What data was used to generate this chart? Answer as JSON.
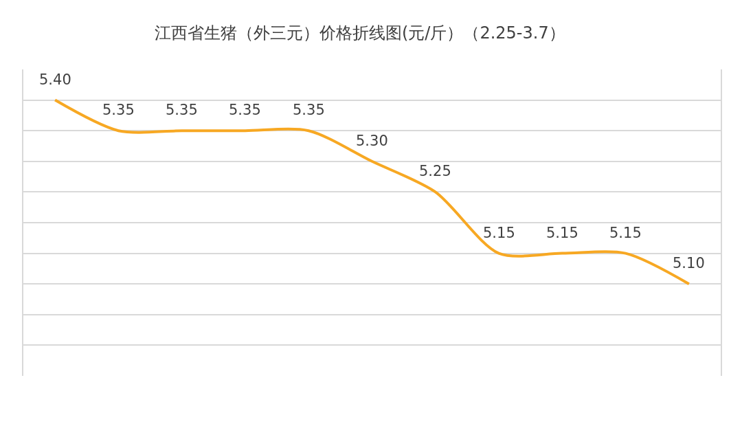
{
  "chart_data": {
    "type": "line",
    "title": "江西省生猪（外三元）价格折线图(元/斤）（2.25-3.7）",
    "categories": [
      null,
      null,
      null,
      null,
      null,
      null,
      null,
      null,
      null,
      null,
      null
    ],
    "series": [
      {
        "color": "#f7a823",
        "values": [
          5.4,
          5.35,
          5.35,
          5.35,
          5.35,
          5.3,
          5.25,
          5.15,
          5.15,
          5.15,
          5.1
        ],
        "value_labels": [
          "5.40",
          "5.35",
          "5.35",
          "5.35",
          "5.35",
          "5.30",
          "5.25",
          "5.15",
          "5.15",
          "5.15",
          "5.10"
        ]
      }
    ],
    "ylim": [
      4.95,
      5.45
    ],
    "tick_labels": false,
    "grid": "y",
    "marker": "none",
    "line_style": "solid"
  }
}
